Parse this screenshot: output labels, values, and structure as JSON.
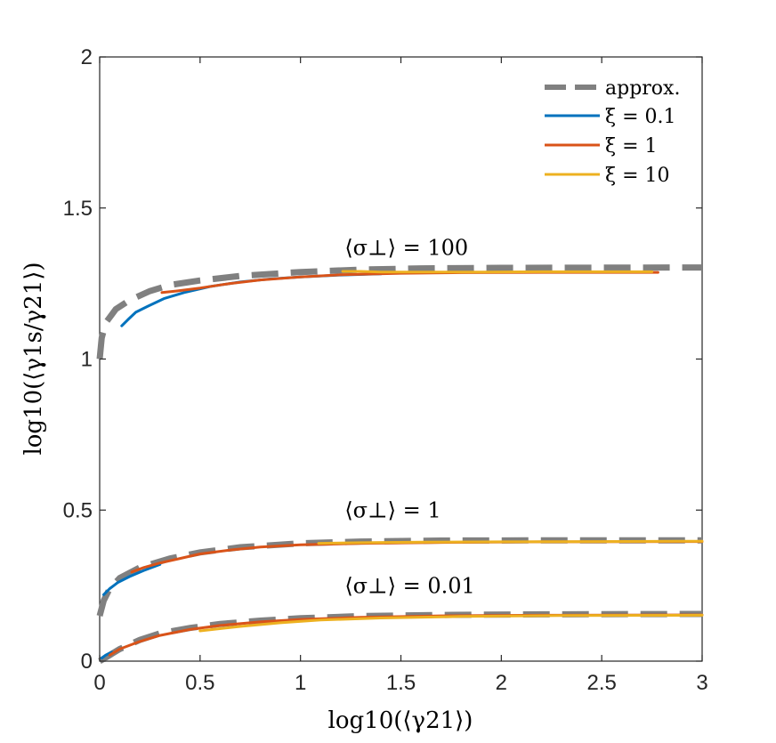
{
  "chart_data": {
    "type": "line",
    "title": "",
    "xlabel": "log10(⟨γ21⟩)",
    "ylabel": "log10(⟨γ1s/γ21⟩)",
    "xlim": [
      0,
      3
    ],
    "ylim": [
      0,
      2
    ],
    "xticks": [
      "0",
      "0.5",
      "1",
      "1.5",
      "2",
      "2.5",
      "3"
    ],
    "yticks": [
      "0",
      "0.5",
      "1",
      "1.5",
      "2"
    ],
    "grid": false,
    "legend_position": "top-right",
    "legend": [
      "approx.",
      "ξ = 0.1",
      "ξ = 1",
      "ξ = 10"
    ],
    "colors": {
      "approx": "#808080",
      "xi_0_1": "#0072BD",
      "xi_1": "#D95319",
      "xi_10": "#EDB120"
    },
    "annotations": [
      {
        "label": "⟨σ⊥⟩ = 100",
        "x": 1.22,
        "y": 1.345
      },
      {
        "label": "⟨σ⊥⟩ = 1",
        "x": 1.22,
        "y": 0.475
      },
      {
        "label": "⟨σ⊥⟩ = 0.01",
        "x": 1.22,
        "y": 0.225
      }
    ],
    "groups": [
      {
        "sigma": "100",
        "approx": [
          [
            0.0,
            1.0
          ],
          [
            0.01,
            1.07
          ],
          [
            0.03,
            1.12
          ],
          [
            0.08,
            1.165
          ],
          [
            0.15,
            1.195
          ],
          [
            0.25,
            1.225
          ],
          [
            0.35,
            1.245
          ],
          [
            0.5,
            1.26
          ],
          [
            0.7,
            1.275
          ],
          [
            1.0,
            1.288
          ],
          [
            1.3,
            1.296
          ],
          [
            1.6,
            1.3
          ],
          [
            2.0,
            1.302
          ],
          [
            3.0,
            1.303
          ]
        ],
        "series": [
          {
            "name": "ξ = 0.1",
            "colorKey": "xi_0_1",
            "points": [
              [
                0.11,
                1.11
              ],
              [
                0.14,
                1.13
              ],
              [
                0.18,
                1.155
              ],
              [
                0.24,
                1.175
              ],
              [
                0.32,
                1.2
              ],
              [
                0.42,
                1.22
              ],
              [
                0.55,
                1.24
              ],
              [
                0.7,
                1.255
              ],
              [
                0.85,
                1.265
              ],
              [
                1.0,
                1.272
              ],
              [
                1.2,
                1.278
              ],
              [
                1.4,
                1.282
              ]
            ]
          },
          {
            "name": "ξ = 1",
            "colorKey": "xi_1",
            "points": [
              [
                0.31,
                1.22
              ],
              [
                0.38,
                1.225
              ],
              [
                0.5,
                1.235
              ],
              [
                0.65,
                1.25
              ],
              [
                0.8,
                1.262
              ],
              [
                1.0,
                1.272
              ],
              [
                1.2,
                1.279
              ],
              [
                1.5,
                1.284
              ],
              [
                1.8,
                1.286
              ],
              [
                2.2,
                1.287
              ],
              [
                2.5,
                1.287
              ],
              [
                2.78,
                1.287
              ]
            ]
          },
          {
            "name": "ξ = 10",
            "colorKey": "xi_10",
            "points": [
              [
                1.21,
                1.29
              ],
              [
                1.3,
                1.29
              ],
              [
                1.4,
                1.288
              ],
              [
                1.6,
                1.288
              ],
              [
                1.9,
                1.288
              ],
              [
                2.2,
                1.289
              ],
              [
                2.5,
                1.289
              ],
              [
                2.75,
                1.289
              ]
            ]
          }
        ]
      },
      {
        "sigma": "1",
        "approx": [
          [
            0.0,
            0.15
          ],
          [
            0.02,
            0.2
          ],
          [
            0.05,
            0.24
          ],
          [
            0.1,
            0.275
          ],
          [
            0.2,
            0.31
          ],
          [
            0.35,
            0.34
          ],
          [
            0.5,
            0.36
          ],
          [
            0.7,
            0.377
          ],
          [
            1.0,
            0.39
          ],
          [
            1.3,
            0.396
          ],
          [
            1.7,
            0.399
          ],
          [
            2.2,
            0.4
          ],
          [
            3.0,
            0.4
          ]
        ],
        "series": [
          {
            "name": "ξ = 0.1",
            "colorKey": "xi_0_1",
            "points": [
              [
                0.02,
                0.22
              ],
              [
                0.05,
                0.24
              ],
              [
                0.09,
                0.26
              ],
              [
                0.15,
                0.28
              ],
              [
                0.22,
                0.3
              ],
              [
                0.3,
                0.32
              ]
            ]
          },
          {
            "name": "ξ = 1",
            "colorKey": "xi_1",
            "points": [
              [
                0.16,
                0.295
              ],
              [
                0.22,
                0.31
              ],
              [
                0.3,
                0.325
              ],
              [
                0.4,
                0.34
              ],
              [
                0.5,
                0.355
              ],
              [
                0.65,
                0.368
              ],
              [
                0.8,
                0.378
              ],
              [
                1.0,
                0.385
              ],
              [
                1.3,
                0.39
              ],
              [
                1.7,
                0.393
              ],
              [
                2.2,
                0.395
              ],
              [
                3.0,
                0.396
              ]
            ]
          },
          {
            "name": "ξ = 10",
            "colorKey": "xi_10",
            "points": [
              [
                1.09,
                0.39
              ],
              [
                1.3,
                0.392
              ],
              [
                1.6,
                0.394
              ],
              [
                2.0,
                0.395
              ],
              [
                2.5,
                0.396
              ],
              [
                3.0,
                0.397
              ]
            ]
          }
        ]
      },
      {
        "sigma": "0.01",
        "approx": [
          [
            0.0,
            0.0
          ],
          [
            0.05,
            0.02
          ],
          [
            0.1,
            0.04
          ],
          [
            0.2,
            0.07
          ],
          [
            0.3,
            0.092
          ],
          [
            0.45,
            0.11
          ],
          [
            0.6,
            0.123
          ],
          [
            0.8,
            0.134
          ],
          [
            1.0,
            0.142
          ],
          [
            1.3,
            0.149
          ],
          [
            1.7,
            0.153
          ],
          [
            2.2,
            0.155
          ],
          [
            3.0,
            0.156
          ]
        ],
        "series": [
          {
            "name": "ξ = 0.1",
            "colorKey": "xi_0_1",
            "points": [
              [
                0.01,
                0.01
              ],
              [
                0.03,
                0.02
              ],
              [
                0.06,
                0.03
              ]
            ]
          },
          {
            "name": "ξ = 1",
            "colorKey": "xi_1",
            "points": [
              [
                0.05,
                0.02
              ],
              [
                0.1,
                0.04
              ],
              [
                0.2,
                0.065
              ],
              [
                0.3,
                0.085
              ],
              [
                0.45,
                0.105
              ],
              [
                0.6,
                0.118
              ],
              [
                0.8,
                0.13
              ],
              [
                1.0,
                0.138
              ],
              [
                1.3,
                0.145
              ],
              [
                1.7,
                0.15
              ],
              [
                2.2,
                0.152
              ],
              [
                3.0,
                0.153
              ]
            ]
          },
          {
            "name": "ξ = 10",
            "colorKey": "xi_10",
            "points": [
              [
                0.5,
                0.1
              ],
              [
                0.7,
                0.115
              ],
              [
                0.9,
                0.127
              ],
              [
                1.1,
                0.136
              ],
              [
                1.4,
                0.143
              ],
              [
                1.8,
                0.148
              ],
              [
                2.3,
                0.151
              ],
              [
                3.0,
                0.152
              ]
            ]
          }
        ]
      }
    ]
  }
}
